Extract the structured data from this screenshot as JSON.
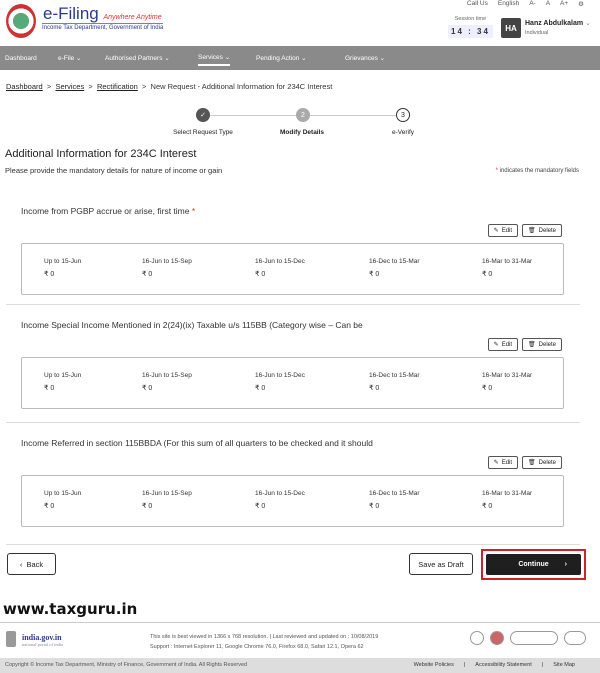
{
  "header": {
    "logo_title": "e-Filing",
    "logo_tagline": "Anywhere Anytime",
    "logo_sub": "Income Tax Department, Government of India",
    "top_links": [
      "Call Us",
      "English",
      "A-",
      "A",
      "A+"
    ],
    "session_label": "Session time",
    "session_time": "14 : 34",
    "avatar": "HA",
    "user_name": "Hanz Abdulkalam",
    "user_role": "Individual"
  },
  "nav": [
    {
      "label": "Dashboard"
    },
    {
      "label": "e-File ⌄"
    },
    {
      "label": "Authorised Partners ⌄"
    },
    {
      "label": "Services ⌄"
    },
    {
      "label": "Pending Action ⌄"
    },
    {
      "label": "Grievances ⌄"
    }
  ],
  "breadcrumb": {
    "items": [
      "Dashboard",
      "Services",
      "Rectification"
    ],
    "current": "New Request - Additional Information for 234C Interest",
    "sep": ">"
  },
  "steps": [
    {
      "num": "✓",
      "label": "Select Request Type"
    },
    {
      "num": "2",
      "label": "Modify Details"
    },
    {
      "num": "3",
      "label": "e-Verify"
    }
  ],
  "page": {
    "title": "Additional Information for 234C Interest",
    "subtitle": "Please provide the mandatory details for nature of income or gain",
    "mandatory_star": "*",
    "mandatory_note": "indicates the mandatory fields"
  },
  "edit_label": "Edit",
  "delete_label": "Delete",
  "quarters": [
    "Up to 15-Jun",
    "16-Jun to 15-Sep",
    "16-Jun to 15-Dec",
    "16-Dec to 15-Mar",
    "16-Mar to 31-Mar"
  ],
  "sections": [
    {
      "title": "Income from PGBP accrue or arise, first time",
      "required": "*",
      "values": [
        "₹ 0",
        "₹ 0",
        "₹ 0",
        "₹ 0",
        "₹ 0"
      ]
    },
    {
      "title": "Income Special Income Mentioned in 2(24)(ix) Taxable u/s 115BB (Category wise – Can be",
      "required": "",
      "values": [
        "₹ 0",
        "₹ 0",
        "₹ 0",
        "₹ 0",
        "₹ 0"
      ]
    },
    {
      "title": "Income Referred in section 115BBDA (For this sum of all quarters to be checked and it should",
      "required": "",
      "values": [
        "₹ 0",
        "₹ 0",
        "₹ 0",
        "₹ 0",
        "₹ 0"
      ]
    }
  ],
  "actions": {
    "back": "Back",
    "save_draft": "Save as Draft",
    "continue": "Continue"
  },
  "watermark": "www.taxguru.in",
  "footer": {
    "india_gov": "india.gov.in",
    "india_gov_sub": "national portal of india",
    "line1": "This site is best viewed in 1366 x 768 resolution.   |   Last reviewed and updated on : 10/08/2019",
    "line2": "Support : Internet Explorer 11, Google Chrome 76.0, Firefox 68.0, Safari 12.1, Opera 62",
    "copyright": "Copyright © Income Tax Department, Ministry of Finance, Government of India. All Rights Reserved",
    "links": [
      "Website Policies",
      "|",
      "Accessibility Statement",
      "|",
      "Site Map"
    ]
  }
}
